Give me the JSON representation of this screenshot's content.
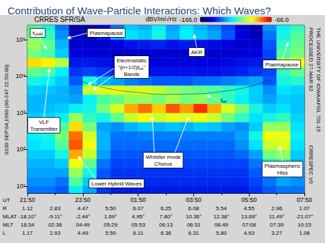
{
  "chart_data": {
    "type": "heatmap",
    "title": "Contribution of Wave-Particle Interactions: Which Waves?",
    "subtitle": "CRRES SFR/SA",
    "xlabel": "UT",
    "ylabel": "0100 SEP.04,1990 (90-247 21:50:00)",
    "log": "y",
    "grid": false,
    "xlim": [
      0,
      10
    ],
    "xticks": [
      {
        "value": 0,
        "label": "21:50"
      },
      {
        "value": 2,
        "label": "23:50"
      },
      {
        "value": 4,
        "label": "01:50"
      },
      {
        "value": 6,
        "label": "03:50"
      },
      {
        "value": 8,
        "label": "05:50"
      },
      {
        "value": 10,
        "label": "07:50"
      }
    ],
    "ylim": [
      6.5,
      245000
    ],
    "yticks": [
      {
        "value": 10,
        "label": "10¹"
      },
      {
        "value": 100,
        "label": "10²"
      },
      {
        "value": 1000,
        "label": "10³"
      },
      {
        "value": 10000,
        "label": "10⁴"
      },
      {
        "value": 100000,
        "label": "10⁵"
      }
    ],
    "colorbar": {
      "label": "dBV/m/√Hz",
      "range": [
        -166,
        -66
      ],
      "ticks": [
        {
          "value": -166,
          "label": "-166.0"
        },
        {
          "value": -66,
          "label": "-66.0"
        }
      ],
      "colors": [
        "#000040",
        "#00008c",
        "#0000e0",
        "#0050ff",
        "#00a8ff",
        "#00f0ff",
        "#50ff9a",
        "#b4ff40",
        "#ffff00",
        "#ffa000",
        "#ff3000",
        "#c00000"
      ]
    },
    "x_bins": [
      0,
      0.5,
      1,
      1.5,
      2,
      2.5,
      3,
      3.5,
      4,
      4.5,
      5,
      5.5,
      6,
      6.5,
      7,
      7.5,
      8,
      8.5,
      9,
      9.5,
      10
    ],
    "y_bins": [
      5.62,
      10,
      17.8,
      31.6,
      56.2,
      100,
      178,
      316,
      562,
      1000,
      1780,
      3160,
      5620,
      10000,
      17800,
      31600,
      56200,
      100000,
      178000,
      316000
    ],
    "cells": [
      [
        -135,
        -135,
        -138,
        -120,
        -130,
        -142,
        -145,
        -145,
        -145,
        -145,
        -145,
        -145,
        -145,
        -145,
        -145,
        -145,
        -142,
        -138,
        -135,
        -135
      ],
      [
        -132,
        -132,
        -135,
        -112,
        -125,
        -140,
        -143,
        -143,
        -143,
        -143,
        -143,
        -143,
        -143,
        -143,
        -143,
        -143,
        -140,
        -135,
        -130,
        -132
      ],
      [
        -130,
        -130,
        -130,
        -105,
        -118,
        -138,
        -142,
        -142,
        -142,
        -142,
        -142,
        -142,
        -142,
        -142,
        -142,
        -142,
        -138,
        -128,
        -125,
        -130
      ],
      [
        -128,
        -128,
        -125,
        -95,
        -110,
        -135,
        -140,
        -140,
        -140,
        -140,
        -140,
        -140,
        -140,
        -140,
        -140,
        -140,
        -135,
        -118,
        -115,
        -128
      ],
      [
        -125,
        -125,
        -118,
        -85,
        -100,
        -130,
        -138,
        -138,
        -138,
        -138,
        -138,
        -138,
        -138,
        -138,
        -138,
        -136,
        -130,
        -108,
        -105,
        -125
      ],
      [
        -122,
        -120,
        -112,
        -78,
        -95,
        -128,
        -136,
        -136,
        -136,
        -136,
        -136,
        -136,
        -136,
        -136,
        -136,
        -132,
        -122,
        -100,
        -98,
        -122
      ],
      [
        -120,
        -118,
        -108,
        -80,
        -98,
        -128,
        -135,
        -135,
        -134,
        -134,
        -134,
        -134,
        -134,
        -134,
        -134,
        -130,
        -118,
        -95,
        -96,
        -120
      ],
      [
        -122,
        -120,
        -112,
        -90,
        -108,
        -130,
        -132,
        -128,
        -125,
        -128,
        -126,
        -128,
        -125,
        -126,
        -130,
        -132,
        -125,
        -105,
        -105,
        -122
      ],
      [
        -125,
        -124,
        -120,
        -105,
        -115,
        -118,
        -110,
        -100,
        -95,
        -100,
        -96,
        -98,
        -95,
        -100,
        -108,
        -115,
        -122,
        -118,
        -115,
        -124
      ],
      [
        -128,
        -127,
        -125,
        -120,
        -118,
        -108,
        -98,
        -85,
        -80,
        -88,
        -78,
        -84,
        -75,
        -85,
        -98,
        -108,
        -118,
        -125,
        -122,
        -126
      ],
      [
        -128,
        -128,
        -128,
        -130,
        -120,
        -112,
        -110,
        -105,
        -105,
        -108,
        -104,
        -108,
        -106,
        -110,
        -115,
        -120,
        -125,
        -130,
        -125,
        -126
      ],
      [
        -125,
        -126,
        -128,
        -132,
        -100,
        -98,
        -96,
        -100,
        -98,
        -102,
        -106,
        -108,
        -110,
        -112,
        -115,
        -118,
        -125,
        -132,
        -122,
        -124
      ],
      [
        -118,
        -120,
        -125,
        -138,
        -118,
        -128,
        -130,
        -134,
        -136,
        -138,
        -138,
        -138,
        -136,
        -136,
        -134,
        -132,
        -130,
        -138,
        -118,
        -116
      ],
      [
        -110,
        -112,
        -120,
        -142,
        -140,
        -142,
        -144,
        -145,
        -146,
        -146,
        -146,
        -146,
        -146,
        -146,
        -145,
        -144,
        -142,
        -140,
        -115,
        -110
      ],
      [
        -90,
        -92,
        -102,
        -145,
        -145,
        -146,
        -147,
        -148,
        -148,
        -148,
        -148,
        -148,
        -148,
        -148,
        -147,
        -146,
        -145,
        -142,
        -100,
        -95
      ],
      [
        -108,
        -112,
        -125,
        -148,
        -148,
        -149,
        -150,
        -150,
        -150,
        -150,
        -150,
        -150,
        -150,
        -150,
        -150,
        -149,
        -148,
        -140,
        -112,
        -108
      ],
      [
        -105,
        -110,
        -128,
        -150,
        -150,
        -150,
        -148,
        -146,
        -145,
        -144,
        -146,
        -145,
        -146,
        -147,
        -148,
        -150,
        -150,
        -138,
        -115,
        -110
      ],
      [
        -108,
        -115,
        -132,
        -152,
        -152,
        -145,
        -130,
        -122,
        -125,
        -118,
        -128,
        -120,
        -126,
        -130,
        -138,
        -148,
        -152,
        -135,
        -118,
        -112
      ],
      [
        -112,
        -118,
        -135,
        -154,
        -154,
        -148,
        -135,
        -125,
        -128,
        -120,
        -130,
        -122,
        -128,
        -133,
        -140,
        -150,
        -154,
        -132,
        -120,
        -115
      ]
    ],
    "fce_curve": {
      "x": [
        2,
        3,
        4,
        5,
        6,
        7,
        8,
        8.8
      ],
      "values": [
        7000,
        4500,
        3600,
        3200,
        3300,
        3800,
        5200,
        8000
      ],
      "line_style": "dotted",
      "color": "#111111"
    },
    "annotations": [
      {
        "lines": [
          [
            {
              "text": "f"
            },
            {
              "text": "UHR",
              "sub": true
            }
          ]
        ]
      },
      {
        "lines": [
          [
            {
              "text": "Plasmapause"
            }
          ]
        ]
      },
      {
        "lines": [
          [
            {
              "text": "AKR"
            }
          ]
        ]
      },
      {
        "lines": [
          [
            {
              "text": "Electrostatic"
            }
          ],
          [
            {
              "text": "\"(n+1/2)f"
            },
            {
              "text": "ce",
              "sub": true
            },
            {
              "text": "\""
            }
          ],
          [
            {
              "text": "Bands"
            }
          ]
        ]
      },
      {
        "lines": [
          [
            {
              "text": "f"
            },
            {
              "text": "ce",
              "sub": true
            }
          ]
        ]
      },
      {
        "lines": [
          [
            {
              "text": "VLF"
            }
          ],
          [
            {
              "text": "Transmitter"
            }
          ]
        ]
      },
      {
        "lines": [
          [
            {
              "text": "Whistler mode"
            }
          ],
          [
            {
              "text": "Chorus"
            }
          ]
        ]
      },
      {
        "lines": [
          [
            {
              "text": "Lower Hybrid Waves"
            }
          ]
        ]
      },
      {
        "lines": [
          [
            {
              "text": "Plasmapause"
            }
          ]
        ]
      },
      {
        "lines": [
          [
            {
              "text": "Plasmaspheric"
            }
          ],
          [
            {
              "text": "Hiss"
            }
          ]
        ]
      }
    ],
    "credits": [
      "THE UNIVERSITY OF IOWA/AFGL 701-15",
      "PROCESSED 27-MAR-92",
      "CRRESPEC V0"
    ],
    "ephemeris": {
      "x": [
        0,
        1,
        2,
        3,
        4,
        5,
        6,
        7,
        8,
        9,
        10
      ],
      "rows": [
        {
          "label": "R",
          "values": [
            "1.12",
            "2.83",
            "4.47",
            "5.50",
            "6.07",
            "6.25",
            "6.08",
            "5.54",
            "4.55",
            "2.96",
            "1.07"
          ]
        },
        {
          "label": "MLAT",
          "values": [
            "-18.10°",
            "-9.11°",
            "-2.44°",
            "1.69°",
            "4.95°",
            "7.80°",
            "10.36°",
            "12.38°",
            "13.69°",
            "11.49°",
            "-21.07°"
          ]
        },
        {
          "label": "MLT",
          "values": [
            "16:34",
            "02:36",
            "04:49",
            "05:29",
            "05:53",
            "06:13",
            "06:31",
            "06:49",
            "07:08",
            "07:39",
            "10:15"
          ]
        },
        {
          "label": "L",
          "values": [
            "1.17",
            "2.93",
            "4.49",
            "5.50",
            "6.11",
            "6.36",
            "6.31",
            "5.80",
            "4.93",
            "3.27",
            "1.08"
          ]
        }
      ]
    }
  }
}
